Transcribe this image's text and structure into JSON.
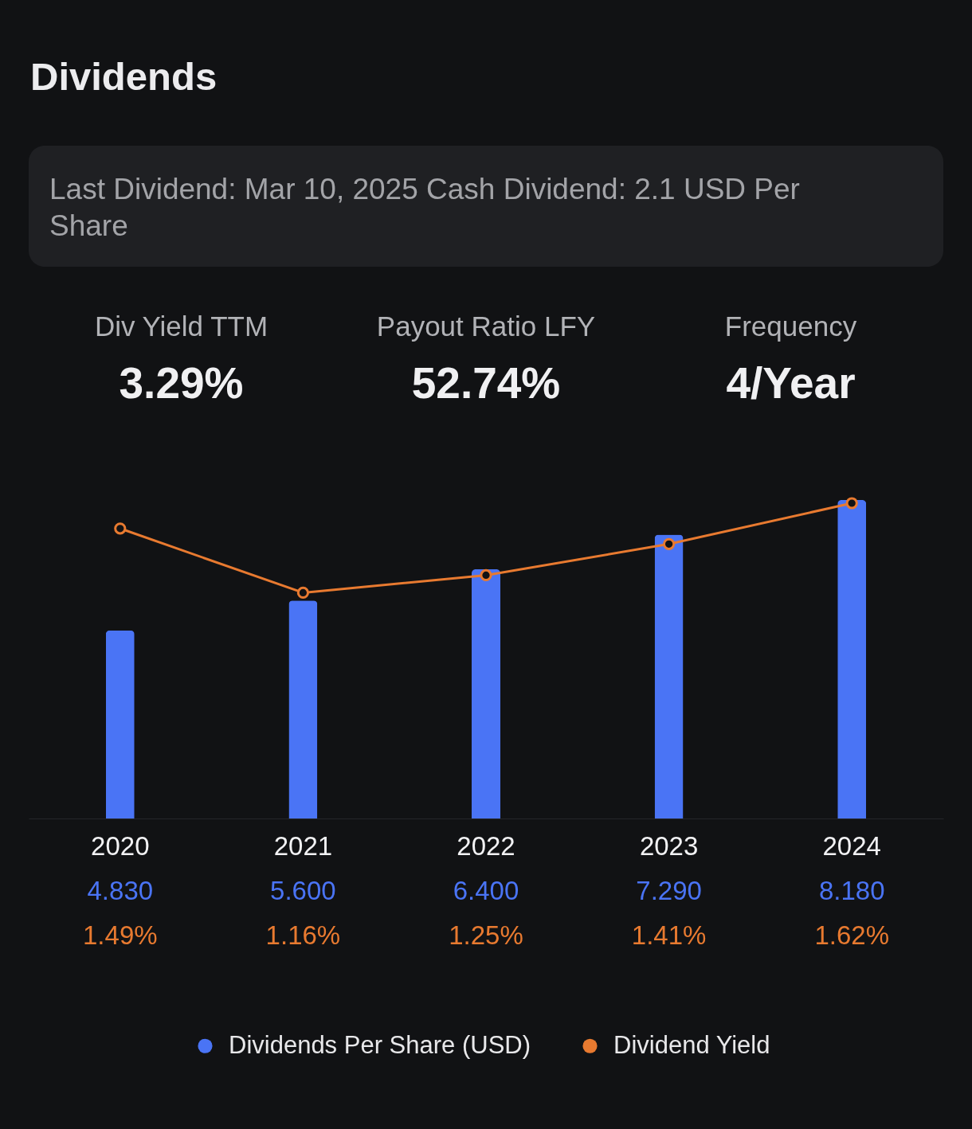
{
  "chart_data": {
    "type": "bar",
    "title": "Dividends",
    "annotations": [
      "Last Dividend:  Mar 10, 2025 Cash Dividend: 2.1 USD Per Share",
      "Div Yield TTM",
      "3.29%",
      "Payout Ratio LFY",
      "52.74%",
      "Frequency",
      "4/Year"
    ],
    "categories": [
      "2020",
      "2021",
      "2022",
      "2023",
      "2024"
    ],
    "series": [
      {
        "name": "Dividends Per Share  (USD)",
        "color": "#4a74f5",
        "values": [
          4.83,
          5.6,
          6.4,
          7.29,
          8.18
        ],
        "value_labels": [
          "4.830",
          "5.600",
          "6.400",
          "7.290",
          "8.180"
        ]
      },
      {
        "name": "Dividend Yield",
        "type": "line",
        "axis": "y2",
        "color": "#e87a30",
        "marker": "circle",
        "values": [
          1.49,
          1.16,
          1.25,
          1.41,
          1.62
        ],
        "value_labels": [
          "1.49%",
          "1.16%",
          "1.25%",
          "1.41%",
          "1.62%"
        ]
      }
    ],
    "tick_labels": "x",
    "legend": "bottom"
  }
}
